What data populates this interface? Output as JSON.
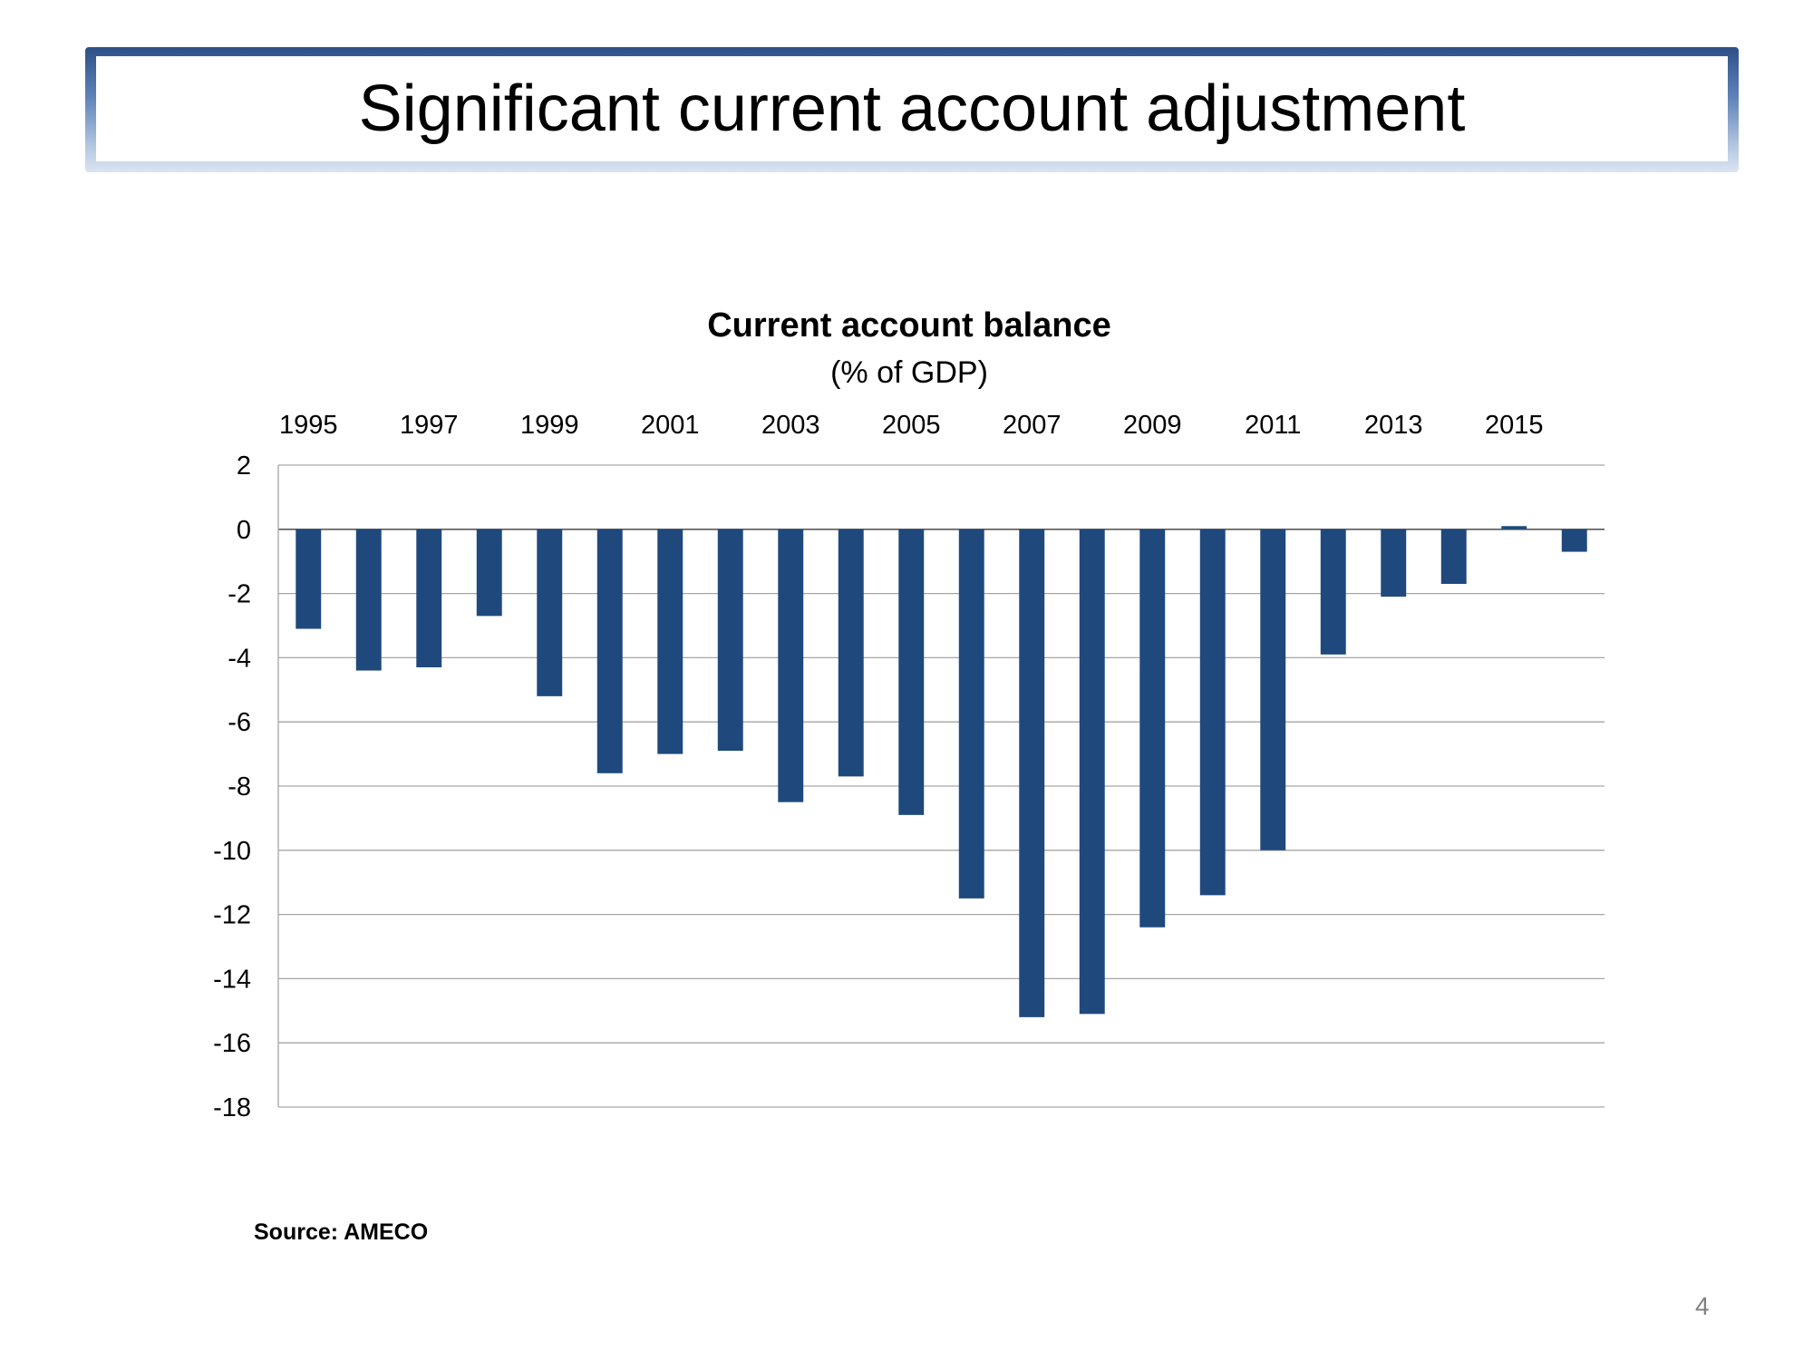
{
  "slide": {
    "title": "Significant current account adjustment",
    "source": "Source: AMECO",
    "page_number": "4"
  },
  "colors": {
    "bar": "#1f497d",
    "gridline": "#a6a6a6",
    "banner_dark": "#2c4f86"
  },
  "chart_data": {
    "type": "bar",
    "title": "Current account balance",
    "subtitle": "(% of GDP)",
    "x_axis_position": "top",
    "x_tick_labels": [
      "1995",
      "1997",
      "1999",
      "2001",
      "2003",
      "2005",
      "2007",
      "2009",
      "2011",
      "2013",
      "2015"
    ],
    "categories": [
      "1995",
      "1996",
      "1997",
      "1998",
      "1999",
      "2000",
      "2001",
      "2002",
      "2003",
      "2004",
      "2005",
      "2006",
      "2007",
      "2008",
      "2009",
      "2010",
      "2011",
      "2012",
      "2013",
      "2014",
      "2015",
      "2016"
    ],
    "values": [
      -3.1,
      -4.4,
      -4.3,
      -2.7,
      -5.2,
      -7.6,
      -7.0,
      -6.9,
      -8.5,
      -7.7,
      -8.9,
      -11.5,
      -15.2,
      -15.1,
      -12.4,
      -11.4,
      -10.0,
      -3.9,
      -2.1,
      -1.7,
      0.1,
      -0.7
    ],
    "ylim": [
      -18,
      2
    ],
    "y_ticks": [
      2,
      0,
      -2,
      -4,
      -6,
      -8,
      -10,
      -12,
      -14,
      -16,
      -18
    ],
    "grid": true,
    "legend": "none"
  }
}
